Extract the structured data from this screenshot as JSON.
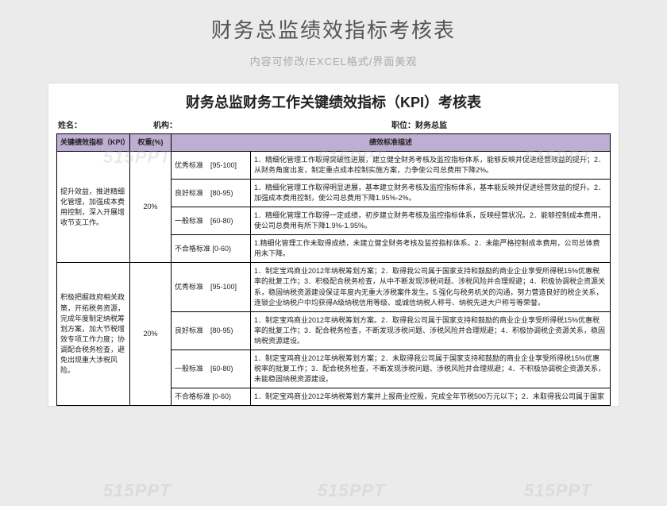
{
  "header": {
    "title": "财务总监绩效指标考核表",
    "subtitle": "内容可修改/EXCEL格式/界面美观"
  },
  "doc": {
    "title": "财务总监财务工作关键绩效指标（KPI）考核表",
    "meta": {
      "name_label": "姓名：",
      "org_label": "机构：",
      "position_label": "职位：",
      "position_value": "财务总监"
    },
    "table": {
      "headers": {
        "kpi": "关键绩效指标（KPI）",
        "weight": "权重(%)",
        "desc": "绩效标准描述"
      },
      "header_bg": "#beaed2",
      "rows": [
        {
          "kpi": "提升效益，推进精细化管理，加强成本费用控制，深入开展增收节支工作。",
          "weight": "20%",
          "levels": [
            {
              "level": "优秀标准　[95-100]",
              "desc": "1．精细化管理工作取得突破性进展，建立健全财务考核及监控指标体系，能够反映并促进经营效益的提升；2．从财务角度出发，制定重点成本控制实施方案，力争使公司总费用下降2%。"
            },
            {
              "level": "良好标准　[80-95)",
              "desc": "1．精细化管理工作取得明显进展，基本建立财务考核及监控指标体系，基本能反映并促进经营效益的提升。2．加强成本费用控制，使公司总费用下降1.95%-2%。"
            },
            {
              "level": "一般标准　[60-80)",
              "desc": "1．精细化管理工作取得一定成绩，初步建立财务考核及监控指标体系，反映经营状况。2．能够控制成本费用，使公司总费用有所下降1.9%-1.95%。"
            },
            {
              "level": "不合格标准 [0-60)",
              "desc": "1.精细化管理工作未取得成绩，未建立健全财务考核及监控指标体系。2．未能严格控制成本费用，公司总体费用未下降。"
            }
          ]
        },
        {
          "kpi": "积极把握政府相关政策，开拓税务资源，完成年度制定纳税筹划方案，加大节税增效专项工作力度；协调配合税务检查，避免出现重大涉税风险。",
          "weight": "20%",
          "levels": [
            {
              "level": "优秀标准　[95-100]",
              "desc": "1．制定宝鸡商业2012年纳税筹划方案；2．取得我公司属于国家支持和鼓励的商业企业享受所得税15%优惠税率的批复工作；3．积极配合税务检查，从中不断发现涉税问题、涉税风险并合理规避；4．积极协调税企资源关系，稳固纳税资源建设保证年度内无重大涉税案件发生。5.强化与税务机关的沟通，努力营造良好的税企关系，连锁企业纳税户中均获得A级纳税信用等级、或诚信纳税人称号、纳税先进大户称号等荣誉。"
            },
            {
              "level": "良好标准　[80-95)",
              "desc": "1．制定宝鸡商业2012年纳税筹划方案。2．取得我公司属于国家支持和鼓励的商业企业享受所得税15%优惠税率的批复工作；3．配合税务检查，不断发现涉税问题、涉税风险并合理规避；4．积极协调税企资源关系，稳固纳税资源建设。"
            },
            {
              "level": "一般标准　[60-80)",
              "desc": "1．制定宝鸡商业2012年纳税筹划方案；2．未取得我公司属于国家支持和鼓励的商业企业享受所得税15%优惠税率的批复工作；3．配合税务检查，不断发现涉税问题、涉税风险并合理规避；4．不积极协调税企资源关系，未能稳固纳税资源建设。"
            },
            {
              "level": "不合格标准 [0-60)",
              "desc": "1．制定宝鸡商业2012年纳税筹划方案并上报商业控股，完成全年节税500万元以下；2．未取得我公司属于国家"
            }
          ]
        }
      ]
    }
  },
  "watermark": "515PPT"
}
